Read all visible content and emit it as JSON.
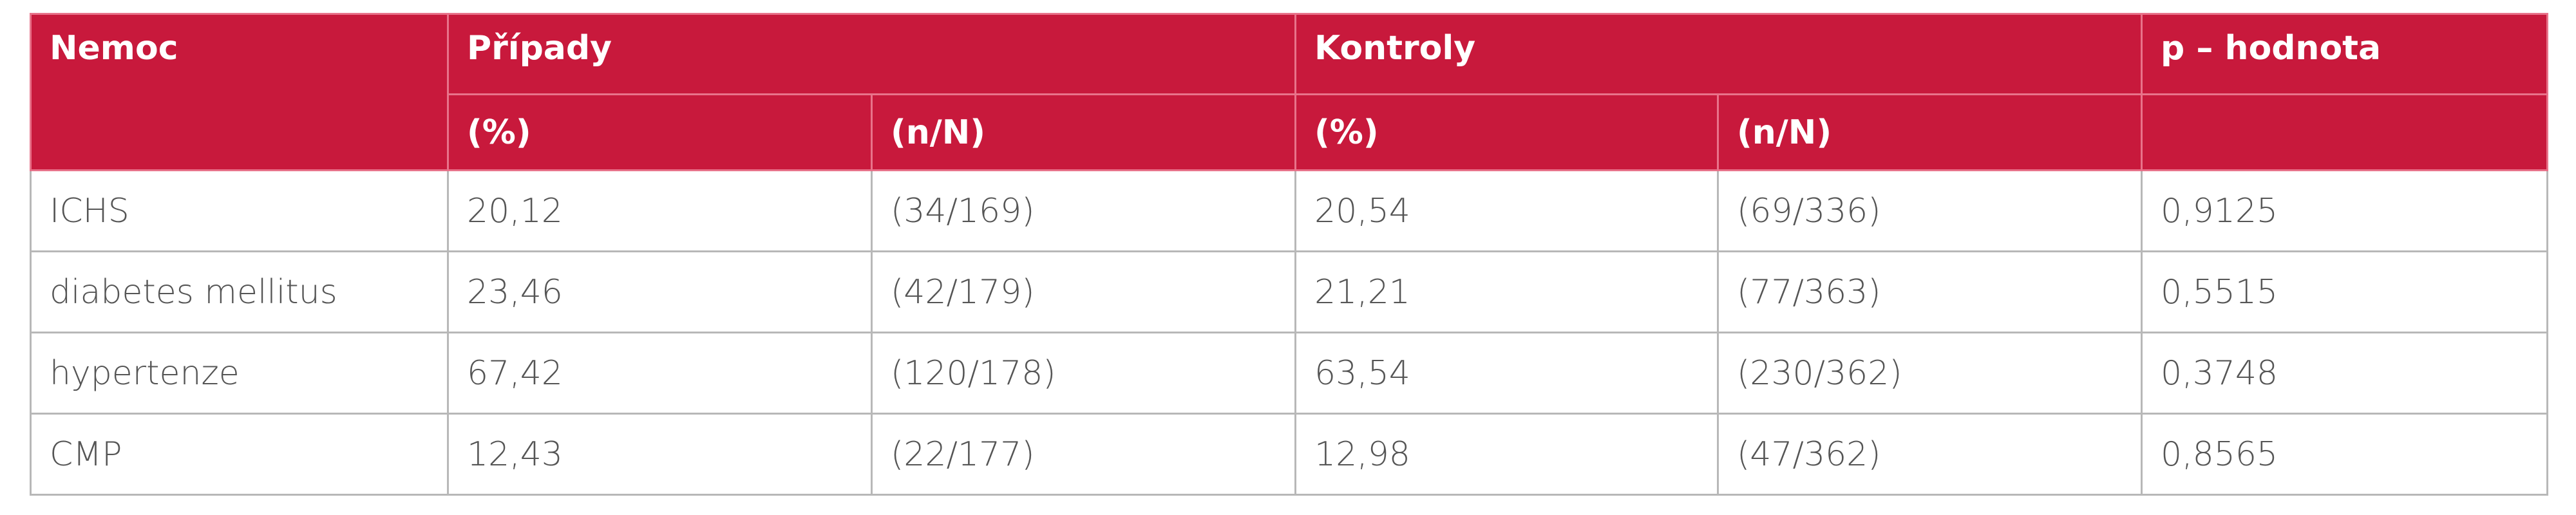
{
  "table": {
    "header": [
      [
        "Nemoc",
        "Případy",
        "Kontroly",
        "p – hodnota"
      ],
      [
        "(%)",
        "(n/N)",
        "(%)",
        "(n/N)"
      ]
    ],
    "rows": [
      [
        "ICHS",
        "20,12",
        "(34/169)",
        "20,54",
        "(69/336)",
        "0,9125"
      ],
      [
        "diabetes mellitus",
        "23,46",
        "(42/179)",
        "21,21",
        "(77/363)",
        "0,5515"
      ],
      [
        "hypertenze",
        "67,42",
        "(120/178)",
        "63,54",
        "(230/362)",
        "0,3748"
      ],
      [
        "CMP",
        "12,43",
        "(22/177)",
        "12,98",
        "(47/362)",
        "0,8565"
      ]
    ]
  }
}
